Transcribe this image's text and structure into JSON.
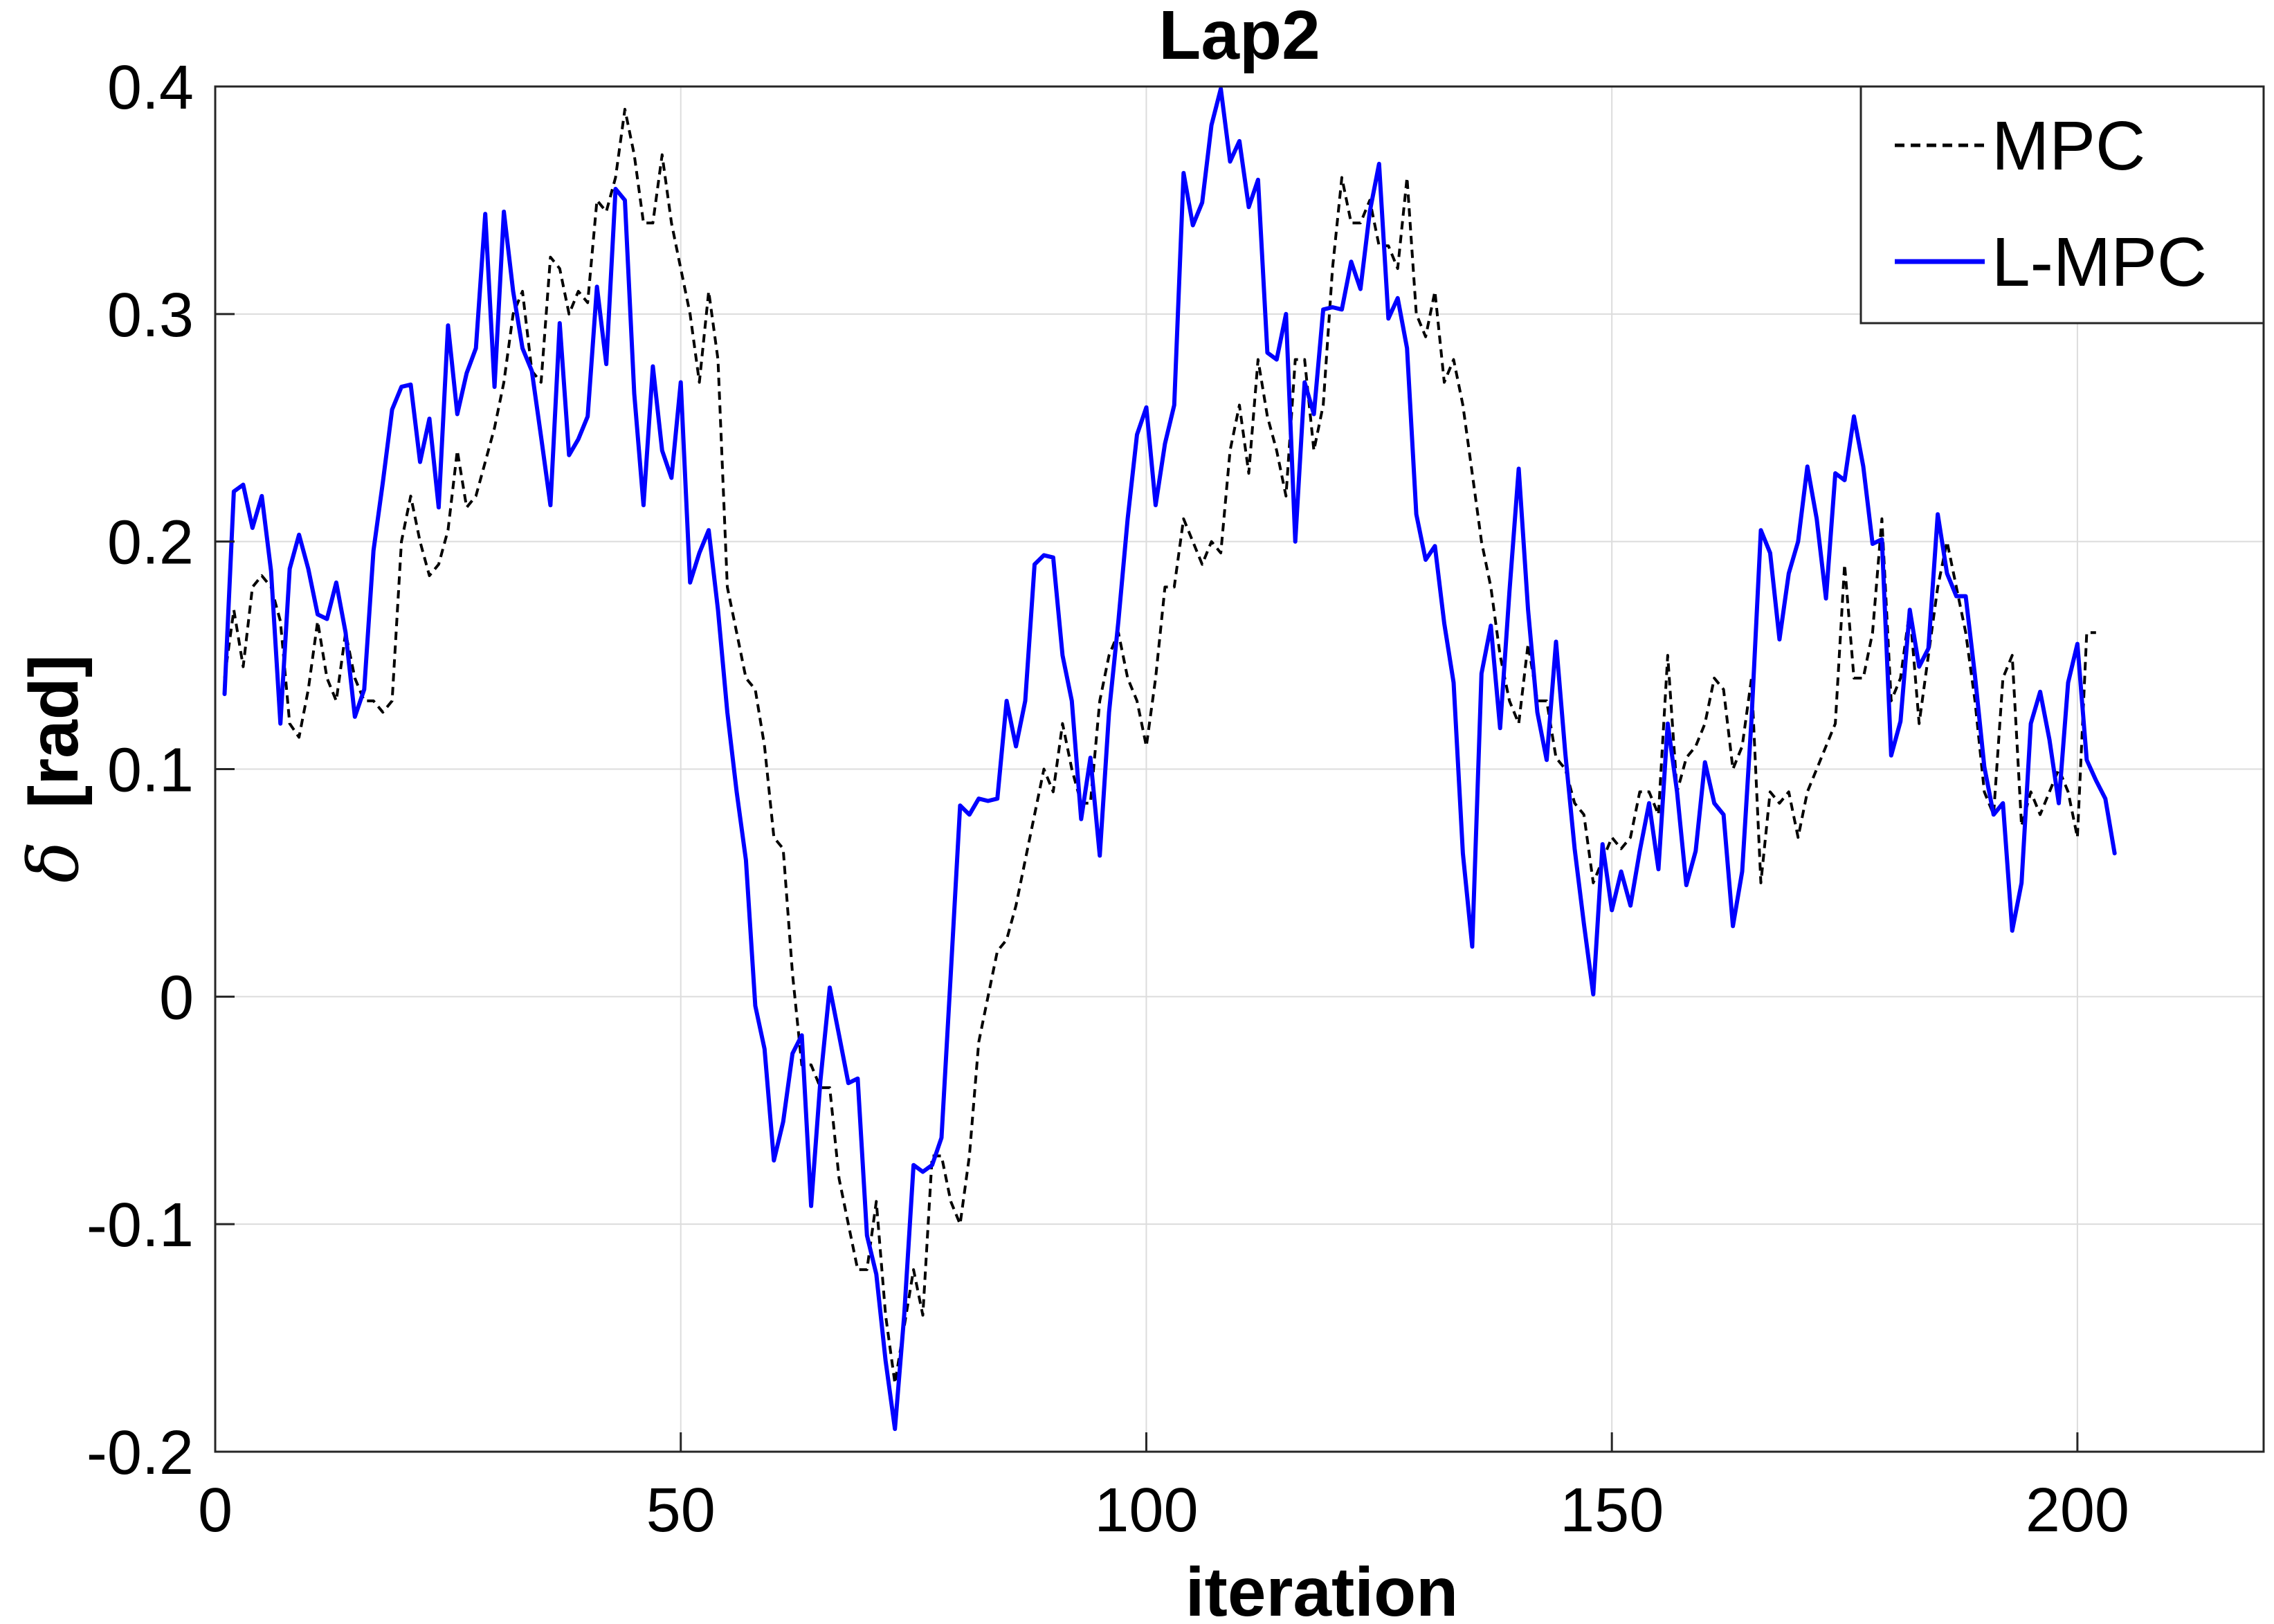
{
  "chart_data": {
    "type": "line",
    "title": "Lap2",
    "xlabel": "iteration",
    "ylabel_symbol": "δ",
    "ylabel_unit": "[rad]",
    "xlim": [
      0,
      220
    ],
    "ylim": [
      -0.2,
      0.4
    ],
    "xticks": [
      0,
      50,
      100,
      150,
      200
    ],
    "xtick_labels": [
      "0",
      "50",
      "100",
      "150",
      "200"
    ],
    "yticks": [
      -0.2,
      -0.1,
      0,
      0.1,
      0.2,
      0.3,
      0.4
    ],
    "ytick_labels": [
      "-0.2",
      "-0.1",
      "0",
      "0.1",
      "0.2",
      "0.3",
      "0.4"
    ],
    "grid": true,
    "legend_position": "top-right",
    "series": [
      {
        "name": "MPC",
        "color": "#000000",
        "style": "dashed",
        "x_start": 1,
        "values": [
          0.14,
          0.17,
          0.145,
          0.18,
          0.185,
          0.18,
          0.165,
          0.12,
          0.114,
          0.135,
          0.165,
          0.14,
          0.13,
          0.16,
          0.14,
          0.13,
          0.13,
          0.125,
          0.13,
          0.2,
          0.22,
          0.2,
          0.185,
          0.19,
          0.205,
          0.24,
          0.215,
          0.22,
          0.235,
          0.25,
          0.27,
          0.3,
          0.31,
          0.275,
          0.27,
          0.325,
          0.32,
          0.3,
          0.31,
          0.305,
          0.35,
          0.345,
          0.36,
          0.39,
          0.37,
          0.34,
          0.34,
          0.37,
          0.34,
          0.32,
          0.3,
          0.27,
          0.31,
          0.28,
          0.18,
          0.16,
          0.14,
          0.135,
          0.11,
          0.07,
          0.065,
          0.01,
          -0.03,
          -0.03,
          -0.04,
          -0.04,
          -0.08,
          -0.1,
          -0.12,
          -0.12,
          -0.09,
          -0.14,
          -0.17,
          -0.145,
          -0.12,
          -0.14,
          -0.07,
          -0.07,
          -0.09,
          -0.1,
          -0.07,
          -0.02,
          0.0,
          0.02,
          0.025,
          0.04,
          0.06,
          0.08,
          0.1,
          0.09,
          0.12,
          0.1,
          0.085,
          0.085,
          0.13,
          0.15,
          0.16,
          0.14,
          0.13,
          0.11,
          0.14,
          0.18,
          0.18,
          0.21,
          0.2,
          0.19,
          0.2,
          0.195,
          0.24,
          0.26,
          0.23,
          0.28,
          0.255,
          0.24,
          0.22,
          0.28,
          0.28,
          0.24,
          0.26,
          0.32,
          0.36,
          0.34,
          0.34,
          0.35,
          0.33,
          0.33,
          0.32,
          0.36,
          0.3,
          0.29,
          0.31,
          0.27,
          0.28,
          0.26,
          0.23,
          0.2,
          0.18,
          0.15,
          0.13,
          0.12,
          0.155,
          0.13,
          0.13,
          0.105,
          0.1,
          0.085,
          0.08,
          0.05,
          0.06,
          0.07,
          0.065,
          0.07,
          0.09,
          0.09,
          0.08,
          0.15,
          0.09,
          0.105,
          0.11,
          0.12,
          0.14,
          0.135,
          0.1,
          0.11,
          0.14,
          0.05,
          0.09,
          0.085,
          0.09,
          0.07,
          0.09,
          0.1,
          0.11,
          0.12,
          0.19,
          0.14,
          0.14,
          0.16,
          0.21,
          0.13,
          0.14,
          0.17,
          0.12,
          0.15,
          0.18,
          0.2,
          0.18,
          0.16,
          0.13,
          0.09,
          0.08,
          0.14,
          0.15,
          0.075,
          0.09,
          0.08,
          0.09,
          0.1,
          0.09,
          0.07,
          0.16,
          0.16
        ]
      },
      {
        "name": "L-MPC",
        "color": "#0000ff",
        "style": "solid",
        "x_start": 1,
        "values": [
          0.133,
          0.222,
          0.225,
          0.206,
          0.22,
          0.187,
          0.12,
          0.188,
          0.203,
          0.188,
          0.168,
          0.166,
          0.182,
          0.16,
          0.123,
          0.135,
          0.196,
          0.226,
          0.258,
          0.268,
          0.269,
          0.235,
          0.254,
          0.215,
          0.295,
          0.256,
          0.274,
          0.285,
          0.344,
          0.268,
          0.345,
          0.31,
          0.285,
          0.275,
          0.246,
          0.216,
          0.296,
          0.238,
          0.245,
          0.255,
          0.312,
          0.278,
          0.355,
          0.35,
          0.265,
          0.216,
          0.277,
          0.24,
          0.228,
          0.27,
          0.182,
          0.195,
          0.205,
          0.17,
          0.125,
          0.09,
          0.06,
          -0.004,
          -0.023,
          -0.072,
          -0.055,
          -0.025,
          -0.017,
          -0.092,
          -0.037,
          0.004,
          -0.017,
          -0.038,
          -0.036,
          -0.105,
          -0.122,
          -0.16,
          -0.19,
          -0.14,
          -0.074,
          -0.077,
          -0.074,
          -0.062,
          0.01,
          0.084,
          0.08,
          0.087,
          0.086,
          0.087,
          0.13,
          0.11,
          0.13,
          0.19,
          0.194,
          0.193,
          0.15,
          0.13,
          0.078,
          0.105,
          0.062,
          0.125,
          0.165,
          0.21,
          0.247,
          0.259,
          0.216,
          0.243,
          0.26,
          0.362,
          0.339,
          0.349,
          0.383,
          0.399,
          0.367,
          0.376,
          0.347,
          0.359,
          0.283,
          0.28,
          0.3,
          0.2,
          0.27,
          0.256,
          0.302,
          0.303,
          0.302,
          0.323,
          0.311,
          0.345,
          0.366,
          0.298,
          0.307,
          0.285,
          0.212,
          0.192,
          0.198,
          0.164,
          0.138,
          0.063,
          0.022,
          0.142,
          0.163,
          0.118,
          0.178,
          0.232,
          0.17,
          0.125,
          0.104,
          0.156,
          0.107,
          0.065,
          0.032,
          0.001,
          0.067,
          0.038,
          0.055,
          0.04,
          0.064,
          0.085,
          0.056,
          0.12,
          0.09,
          0.049,
          0.064,
          0.103,
          0.085,
          0.08,
          0.031,
          0.055,
          0.122,
          0.205,
          0.195,
          0.157,
          0.186,
          0.2,
          0.233,
          0.21,
          0.175,
          0.23,
          0.227,
          0.255,
          0.233,
          0.199,
          0.201,
          0.106,
          0.121,
          0.17,
          0.145,
          0.153,
          0.212,
          0.186,
          0.176,
          0.176,
          0.141,
          0.101,
          0.08,
          0.085,
          0.029,
          0.05,
          0.12,
          0.134,
          0.113,
          0.085,
          0.138,
          0.155,
          0.104,
          0.095,
          0.087,
          0.063
        ]
      }
    ]
  }
}
